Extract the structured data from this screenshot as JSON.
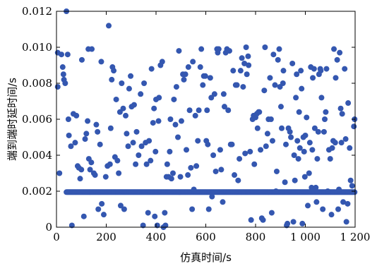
{
  "chart_data": {
    "type": "scatter",
    "xlabel": "仿真时间/s",
    "ylabel": "端到端时延时间/s",
    "xlim": [
      0,
      1200
    ],
    "ylim": [
      0,
      0.012
    ],
    "xticks": [
      0,
      200,
      400,
      600,
      800,
      1000,
      1200
    ],
    "xtick_labels": [
      "0",
      "200",
      "400",
      "600",
      "800",
      "1 000",
      "1 200"
    ],
    "yticks": [
      0,
      0.002,
      0.004,
      0.006,
      0.008,
      0.01,
      0.012
    ],
    "ytick_labels": [
      "0",
      "0.002",
      "0.004",
      "0.006",
      "0.008",
      "0.010",
      "0.012"
    ],
    "grid": false,
    "marker_color": "#3457b0",
    "baseline": {
      "y": 0.00195,
      "x_start": 40,
      "x_end": 1200,
      "x_step": 3
    },
    "points": [
      [
        5,
        0.0097
      ],
      [
        5,
        0.0078
      ],
      [
        12,
        0.003
      ],
      [
        20,
        0.0096
      ],
      [
        25,
        0.0089
      ],
      [
        28,
        0.0085
      ],
      [
        30,
        0.0082
      ],
      [
        35,
        0.008
      ],
      [
        40,
        0.012
      ],
      [
        45,
        0.0096
      ],
      [
        48,
        0.006
      ],
      [
        50,
        0.0051
      ],
      [
        58,
        0.0045
      ],
      [
        62,
        0.0001
      ],
      [
        68,
        0.0063
      ],
      [
        75,
        0.0047
      ],
      [
        80,
        0.0062
      ],
      [
        85,
        0.0034
      ],
      [
        90,
        0.0033
      ],
      [
        95,
        0.0027
      ],
      [
        100,
        0.0032
      ],
      [
        102,
        0.0093
      ],
      [
        110,
        0.0006
      ],
      [
        115,
        0.0049
      ],
      [
        120,
        0.0052
      ],
      [
        125,
        0.0059
      ],
      [
        128,
        0.0099
      ],
      [
        130,
        0.0038
      ],
      [
        135,
        0.0032
      ],
      [
        140,
        0.0036
      ],
      [
        142,
        0.0099
      ],
      [
        150,
        0.003
      ],
      [
        155,
        0.0029
      ],
      [
        160,
        0.0057
      ],
      [
        165,
        0.0053
      ],
      [
        168,
        0.001
      ],
      [
        175,
        0.0046
      ],
      [
        180,
        0.0092
      ],
      [
        182,
        0.0013
      ],
      [
        190,
        0.0007
      ],
      [
        198,
        0.0028
      ],
      [
        205,
        0.0034
      ],
      [
        210,
        0.0112
      ],
      [
        215,
        0.0035
      ],
      [
        218,
        0.0055
      ],
      [
        222,
        0.0082
      ],
      [
        225,
        0.0089
      ],
      [
        230,
        0.0087
      ],
      [
        235,
        0.0039
      ],
      [
        240,
        0.0071
      ],
      [
        245,
        0.0037
      ],
      [
        250,
        0.003
      ],
      [
        255,
        0.0064
      ],
      [
        258,
        0.0012
      ],
      [
        262,
        0.008
      ],
      [
        268,
        0.0066
      ],
      [
        272,
        0.001
      ],
      [
        278,
        0.0062
      ],
      [
        282,
        0.0052
      ],
      [
        288,
        0.0045
      ],
      [
        292,
        0.0077
      ],
      [
        298,
        0.0084
      ],
      [
        302,
        0.0067
      ],
      [
        308,
        0.0047
      ],
      [
        312,
        0.0068
      ],
      [
        318,
        0.0035
      ],
      [
        322,
        0.0053
      ],
      [
        330,
        0.004
      ],
      [
        338,
        0.0074
      ],
      [
        342,
        0.0045
      ],
      [
        348,
        0.0001
      ],
      [
        352,
        0.008
      ],
      [
        358,
        0.0047
      ],
      [
        362,
        0.0035
      ],
      [
        368,
        0.0008
      ],
      [
        372,
        0.0048
      ],
      [
        378,
        0.0037
      ],
      [
        382,
        0.0088
      ],
      [
        388,
        0.0058
      ],
      [
        392,
        0.0066
      ],
      [
        395,
        0.0006
      ],
      [
        398,
        0.0042
      ],
      [
        400,
        0.0071
      ],
      [
        405,
        0.0001
      ],
      [
        410,
        0.0059
      ],
      [
        412,
        0.0072
      ],
      [
        418,
        0.009
      ],
      [
        425,
        0.0092
      ],
      [
        430,
        0.0
      ],
      [
        435,
        0.0008
      ],
      [
        438,
        0.0001
      ],
      [
        442,
        0.0028
      ],
      [
        445,
        0.0035
      ],
      [
        450,
        0.0028
      ],
      [
        455,
        0.0042
      ],
      [
        458,
        0.006
      ],
      [
        462,
        0.0027
      ],
      [
        468,
        0.003
      ],
      [
        472,
        0.0071
      ],
      [
        478,
        0.0057
      ],
      [
        482,
        0.0078
      ],
      [
        488,
        0.005
      ],
      [
        492,
        0.0098
      ],
      [
        498,
        0.0028
      ],
      [
        502,
        0.0059
      ],
      [
        508,
        0.0085
      ],
      [
        512,
        0.0082
      ],
      [
        518,
        0.0085
      ],
      [
        522,
        0.0043
      ],
      [
        528,
        0.0029
      ],
      [
        530,
        0.0089
      ],
      [
        535,
        0.0065
      ],
      [
        540,
        0.0033
      ],
      [
        545,
        0.001
      ],
      [
        548,
        0.0092
      ],
      [
        552,
        0.0021
      ],
      [
        558,
        0.0062
      ],
      [
        562,
        0.0034
      ],
      [
        568,
        0.0048
      ],
      [
        572,
        0.0065
      ],
      [
        578,
        0.0089
      ],
      [
        582,
        0.0099
      ],
      [
        588,
        0.0079
      ],
      [
        592,
        0.0084
      ],
      [
        598,
        0.0084
      ],
      [
        602,
        0.0048
      ],
      [
        605,
        0.0065
      ],
      [
        608,
        0.0046
      ],
      [
        612,
        0.001
      ],
      [
        618,
        0.0083
      ],
      [
        622,
        0.0072
      ],
      [
        625,
        0.0017
      ],
      [
        630,
        0.004
      ],
      [
        635,
        0.0074
      ],
      [
        640,
        0.0031
      ],
      [
        645,
        0.0099
      ],
      [
        648,
        0.0097
      ],
      [
        652,
        0.0099
      ],
      [
        658,
        0.0043
      ],
      [
        662,
        0.0032
      ],
      [
        668,
        0.0014
      ],
      [
        672,
        0.0074
      ],
      [
        675,
        0.0067
      ],
      [
        680,
        0.0097
      ],
      [
        685,
        0.0099
      ],
      [
        690,
        0.0065
      ],
      [
        695,
        0.0098
      ],
      [
        700,
        0.0046
      ],
      [
        705,
        0.0046
      ],
      [
        710,
        0.0087
      ],
      [
        715,
        0.0029
      ],
      [
        720,
        0.0079
      ],
      [
        725,
        0.0079
      ],
      [
        730,
        0.0026
      ],
      [
        735,
        0.0038
      ],
      [
        740,
        0.0087
      ],
      [
        745,
        0.0094
      ],
      [
        750,
        0.0078
      ],
      [
        755,
        0.0091
      ],
      [
        758,
        0.0041
      ],
      [
        762,
        0.01
      ],
      [
        765,
        0.0085
      ],
      [
        770,
        0.0095
      ],
      [
        772,
        0.009
      ],
      [
        778,
        0.0042
      ],
      [
        782,
        0.0004
      ],
      [
        788,
        0.006
      ],
      [
        792,
        0.0062
      ],
      [
        795,
        0.0035
      ],
      [
        800,
        0.0061
      ],
      [
        805,
        0.0063
      ],
      [
        808,
        0.0055
      ],
      [
        812,
        0.0064
      ],
      [
        815,
        0.0064
      ],
      [
        820,
        0.0043
      ],
      [
        825,
        0.0005
      ],
      [
        830,
        0.0004
      ],
      [
        835,
        0.0076
      ],
      [
        838,
        0.01
      ],
      [
        842,
        0.0045
      ],
      [
        848,
        0.0052
      ],
      [
        852,
        0.006
      ],
      [
        858,
        0.0083
      ],
      [
        862,
        0.006
      ],
      [
        865,
        0.0008
      ],
      [
        868,
        0.0048
      ],
      [
        872,
        0.0096
      ],
      [
        878,
        0.0079
      ],
      [
        882,
        0.002
      ],
      [
        885,
        0.0031
      ],
      [
        890,
        0.0093
      ],
      [
        895,
        0.0099
      ],
      [
        898,
        0.0078
      ],
      [
        902,
        0.0067
      ],
      [
        905,
        0.0055
      ],
      [
        910,
        0.008
      ],
      [
        912,
        0.0087
      ],
      [
        918,
        0.0025
      ],
      [
        922,
        0.0046
      ],
      [
        925,
        0.0001
      ],
      [
        928,
        0.0002
      ],
      [
        932,
        0.0055
      ],
      [
        938,
        0.0053
      ],
      [
        942,
        0.005
      ],
      [
        948,
        0.0091
      ],
      [
        952,
        0.0003
      ],
      [
        955,
        0.004
      ],
      [
        958,
        0.0026
      ],
      [
        962,
        0.0072
      ],
      [
        965,
        0.0085
      ],
      [
        968,
        0.0048
      ],
      [
        972,
        0.0038
      ],
      [
        975,
        0.0064
      ],
      [
        978,
        0.0044
      ],
      [
        982,
        0.0087
      ],
      [
        985,
        0.0077
      ],
      [
        988,
        0.0002
      ],
      [
        992,
        0.005
      ],
      [
        995,
        0.0042
      ],
      [
        998,
        0.0028
      ],
      [
        1000,
        0.0051
      ],
      [
        1005,
        0.0061
      ],
      [
        1010,
        0.0012
      ],
      [
        1015,
        0.003
      ],
      [
        1018,
        0.0047
      ],
      [
        1022,
        0.0089
      ],
      [
        1025,
        0.0022
      ],
      [
        1028,
        0.0043
      ],
      [
        1030,
        0.0083
      ],
      [
        1035,
        0.0088
      ],
      [
        1038,
        0.0055
      ],
      [
        1042,
        0.0022
      ],
      [
        1045,
        0.0014
      ],
      [
        1048,
        0.0038
      ],
      [
        1052,
        0.0053
      ],
      [
        1055,
        0.0085
      ],
      [
        1060,
        0.0088
      ],
      [
        1062,
        0.0087
      ],
      [
        1065,
        0.0072
      ],
      [
        1070,
        0.001
      ],
      [
        1075,
        0.0053
      ],
      [
        1078,
        0.006
      ],
      [
        1082,
        0.0064
      ],
      [
        1085,
        0.0088
      ],
      [
        1090,
        0.002
      ],
      [
        1095,
        0.0043
      ],
      [
        1100,
        0.0038
      ],
      [
        1105,
        0.0007
      ],
      [
        1108,
        0.0044
      ],
      [
        1112,
        0.0048
      ],
      [
        1115,
        0.0099
      ],
      [
        1120,
        0.0047
      ],
      [
        1122,
        0.0083
      ],
      [
        1128,
        0.0093
      ],
      [
        1132,
        0.001
      ],
      [
        1135,
        0.0021
      ],
      [
        1138,
        0.0097
      ],
      [
        1142,
        0.0066
      ],
      [
        1145,
        0.0047
      ],
      [
        1148,
        0.0063
      ],
      [
        1152,
        0.0014
      ],
      [
        1158,
        0.0088
      ],
      [
        1162,
        0.0049
      ],
      [
        1165,
        0.0003
      ],
      [
        1170,
        0.0013
      ],
      [
        1172,
        0.0069
      ],
      [
        1178,
        0.0044
      ],
      [
        1182,
        0.0026
      ],
      [
        1188,
        0.0023
      ],
      [
        1195,
        0.0056
      ],
      [
        1198,
        0.006
      ]
    ]
  }
}
